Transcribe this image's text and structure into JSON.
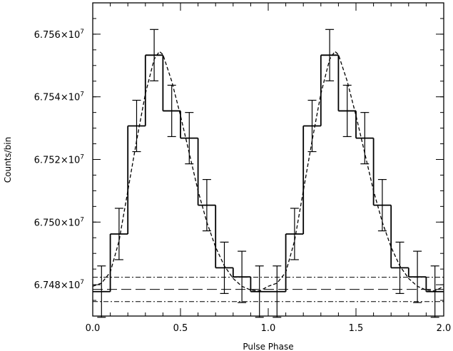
{
  "chart_data": {
    "type": "line",
    "xlabel": "Pulse Phase",
    "ylabel": "Counts/bin",
    "xlim": [
      0.0,
      2.0
    ],
    "ylim": [
      67470000,
      67570000
    ],
    "x_ticks": [
      {
        "value": 0.0,
        "label": "0.0"
      },
      {
        "value": 0.5,
        "label": "0.5"
      },
      {
        "value": 1.0,
        "label": "1.0"
      },
      {
        "value": 1.5,
        "label": "1.5"
      },
      {
        "value": 2.0,
        "label": "2.0"
      }
    ],
    "y_ticks": [
      {
        "value": 67480000,
        "mantissa": "6.748",
        "times": "×10",
        "exponent": "7"
      },
      {
        "value": 67500000,
        "mantissa": "6.750",
        "times": "×10",
        "exponent": "7"
      },
      {
        "value": 67520000,
        "mantissa": "6.752",
        "times": "×10",
        "exponent": "7"
      },
      {
        "value": 67540000,
        "mantissa": "6.754",
        "times": "×10",
        "exponent": "7"
      },
      {
        "value": 67560000,
        "mantissa": "6.756",
        "times": "×10",
        "exponent": "7"
      }
    ],
    "x_minor_step": 0.1,
    "y_minor_step": 5000,
    "histogram": {
      "bin_width": 0.1,
      "bins": [
        {
          "x": 0.05,
          "y": 67477800,
          "err": 8200
        },
        {
          "x": 0.15,
          "y": 67496200,
          "err": 8200
        },
        {
          "x": 0.25,
          "y": 67530700,
          "err": 8200
        },
        {
          "x": 0.35,
          "y": 67553300,
          "err": 8200
        },
        {
          "x": 0.45,
          "y": 67535500,
          "err": 8200
        },
        {
          "x": 0.55,
          "y": 67526800,
          "err": 8200
        },
        {
          "x": 0.65,
          "y": 67505400,
          "err": 8200
        },
        {
          "x": 0.75,
          "y": 67485400,
          "err": 8200
        },
        {
          "x": 0.85,
          "y": 67482500,
          "err": 8200
        },
        {
          "x": 0.95,
          "y": 67477800,
          "err": 8200
        },
        {
          "x": 1.05,
          "y": 67477800,
          "err": 8200
        },
        {
          "x": 1.15,
          "y": 67496200,
          "err": 8200
        },
        {
          "x": 1.25,
          "y": 67530700,
          "err": 8200
        },
        {
          "x": 1.35,
          "y": 67553300,
          "err": 8200
        },
        {
          "x": 1.45,
          "y": 67535500,
          "err": 8200
        },
        {
          "x": 1.55,
          "y": 67526800,
          "err": 8200
        },
        {
          "x": 1.65,
          "y": 67505400,
          "err": 8200
        },
        {
          "x": 1.75,
          "y": 67485400,
          "err": 8200
        },
        {
          "x": 1.85,
          "y": 67482500,
          "err": 8200
        },
        {
          "x": 1.95,
          "y": 67477800,
          "err": 8200
        }
      ]
    },
    "model_curve": {
      "style": "dashed",
      "points": [
        [
          0.0,
          67479500
        ],
        [
          0.05,
          67480500
        ],
        [
          0.1,
          67484000
        ],
        [
          0.15,
          67494000
        ],
        [
          0.2,
          67510000
        ],
        [
          0.25,
          67526000
        ],
        [
          0.3,
          67541000
        ],
        [
          0.35,
          67552000
        ],
        [
          0.38,
          67554500
        ],
        [
          0.4,
          67553500
        ],
        [
          0.45,
          67545000
        ],
        [
          0.5,
          67534000
        ],
        [
          0.55,
          67522000
        ],
        [
          0.6,
          67510000
        ],
        [
          0.65,
          67500000
        ],
        [
          0.7,
          67492000
        ],
        [
          0.75,
          67486000
        ],
        [
          0.8,
          67482000
        ],
        [
          0.85,
          67479500
        ],
        [
          0.9,
          67478300
        ],
        [
          0.95,
          67478000
        ],
        [
          1.0,
          67479500
        ],
        [
          1.05,
          67480500
        ],
        [
          1.1,
          67484000
        ],
        [
          1.15,
          67494000
        ],
        [
          1.2,
          67510000
        ],
        [
          1.25,
          67526000
        ],
        [
          1.3,
          67541000
        ],
        [
          1.35,
          67552000
        ],
        [
          1.38,
          67554500
        ],
        [
          1.4,
          67553500
        ],
        [
          1.45,
          67545000
        ],
        [
          1.5,
          67534000
        ],
        [
          1.55,
          67522000
        ],
        [
          1.6,
          67510000
        ],
        [
          1.65,
          67500000
        ],
        [
          1.7,
          67492000
        ],
        [
          1.75,
          67486000
        ],
        [
          1.8,
          67482000
        ],
        [
          1.85,
          67479500
        ],
        [
          1.9,
          67478300
        ],
        [
          1.95,
          67478000
        ],
        [
          2.0,
          67479500
        ]
      ]
    },
    "reference_lines": [
      {
        "y": 67482400,
        "style": "dash-dot"
      },
      {
        "y": 67478500,
        "style": "long-dash"
      },
      {
        "y": 67474600,
        "style": "dash-dot"
      }
    ],
    "grid": false,
    "legend": "none"
  }
}
